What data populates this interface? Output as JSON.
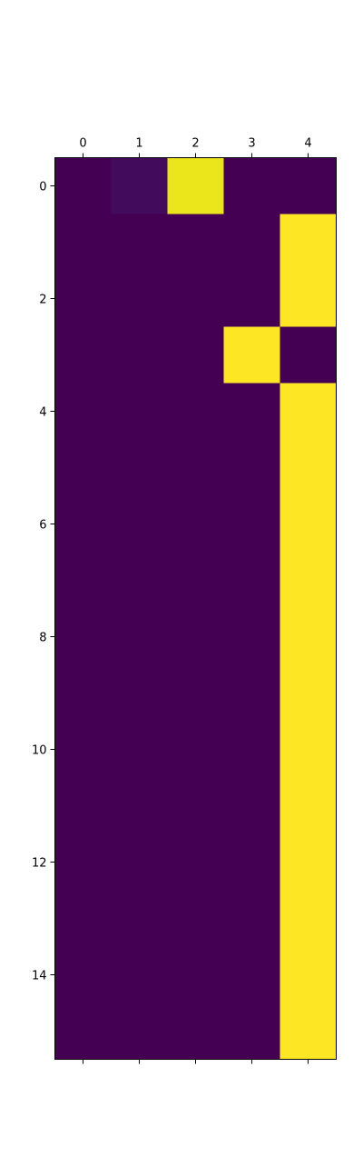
{
  "chart_data": {
    "type": "heatmap",
    "title": "",
    "xlabel": "",
    "ylabel": "",
    "colormap": "viridis",
    "color_range": [
      0,
      1
    ],
    "x_tick_position": "top",
    "x_tick_labels": [
      "0",
      "1",
      "2",
      "3",
      "4"
    ],
    "y_tick_labels": [
      "0",
      "2",
      "4",
      "6",
      "8",
      "10",
      "12",
      "14"
    ],
    "x_ticks": [
      0,
      1,
      2,
      3,
      4
    ],
    "y_ticks": [
      0,
      2,
      4,
      6,
      8,
      10,
      12,
      14
    ],
    "rows": 16,
    "cols": 5,
    "values": [
      [
        0.0,
        0.03,
        0.95,
        0.0,
        0.0
      ],
      [
        0.0,
        0.0,
        0.0,
        0.0,
        1.0
      ],
      [
        0.0,
        0.0,
        0.0,
        0.0,
        1.0
      ],
      [
        0.0,
        0.0,
        0.0,
        1.0,
        0.0
      ],
      [
        0.0,
        0.0,
        0.0,
        0.0,
        1.0
      ],
      [
        0.0,
        0.0,
        0.0,
        0.0,
        1.0
      ],
      [
        0.0,
        0.0,
        0.0,
        0.0,
        1.0
      ],
      [
        0.0,
        0.0,
        0.0,
        0.0,
        1.0
      ],
      [
        0.0,
        0.0,
        0.0,
        0.0,
        1.0
      ],
      [
        0.0,
        0.0,
        0.0,
        0.0,
        1.0
      ],
      [
        0.0,
        0.0,
        0.0,
        0.0,
        1.0
      ],
      [
        0.0,
        0.0,
        0.0,
        0.0,
        1.0
      ],
      [
        0.0,
        0.0,
        0.0,
        0.0,
        1.0
      ],
      [
        0.0,
        0.0,
        0.0,
        0.0,
        1.0
      ],
      [
        0.0,
        0.0,
        0.0,
        0.0,
        1.0
      ],
      [
        0.0,
        0.0,
        0.0,
        0.0,
        1.0
      ]
    ],
    "grid": false,
    "legend": "none"
  }
}
